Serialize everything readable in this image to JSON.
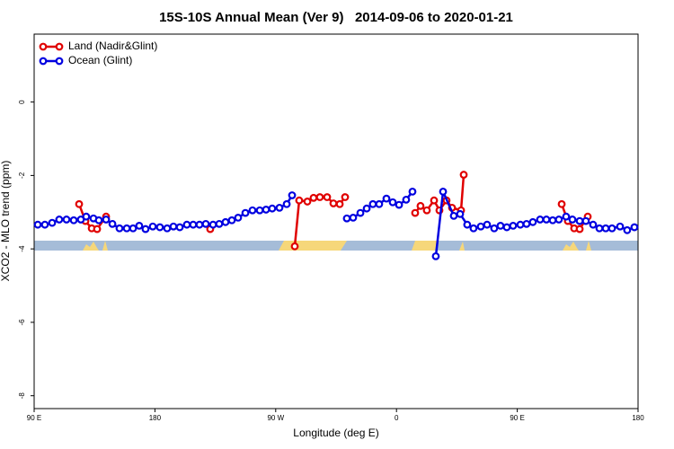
{
  "chart_data": {
    "type": "line",
    "title": "15S-10S Annual Mean (Ver 9)   2014-09-06 to 2020-01-21",
    "x_label": "Longitude (deg E)",
    "y_label": "XCO2 - MLO trend (ppm)",
    "xlim": [
      90,
      540
    ],
    "xticks": [
      {
        "value": 90,
        "label": "90 E"
      },
      {
        "value": 180,
        "label": "180"
      },
      {
        "value": 270,
        "label": "90 W"
      },
      {
        "value": 360,
        "label": "0"
      },
      {
        "value": 450,
        "label": "90 E"
      },
      {
        "value": 540,
        "label": "180"
      }
    ],
    "ylim": [
      -8.35,
      1.85
    ],
    "yticks": [
      0,
      -2,
      -4,
      -6,
      -8
    ],
    "legend": "top-left",
    "series": [
      {
        "name": "Land (Nadir&Glint)",
        "color": "#e00000",
        "x": [
          123.5,
          128.2,
          132.9,
          136.9,
          143.6,
          null,
          221.2,
          null,
          284.2,
          287.5,
          293.6,
          298.2,
          302.9,
          308.3,
          313.0,
          317.7,
          321.7,
          null,
          373.9,
          377.9,
          382.6,
          388.0,
          392.0,
          397.3,
          401.4,
          408.1,
          410.1,
          null,
          483.1,
          487.7,
          492.4,
          496.5,
          502.5
        ],
        "values": [
          -2.78,
          -3.24,
          -3.44,
          -3.46,
          -3.12,
          null,
          -3.46,
          null,
          -3.93,
          -2.68,
          -2.71,
          -2.61,
          -2.59,
          -2.59,
          -2.76,
          -2.78,
          -2.59,
          null,
          -3.02,
          -2.83,
          -2.95,
          -2.68,
          -2.95,
          -2.68,
          -2.88,
          -2.95,
          -1.98,
          null,
          -2.78,
          -3.24,
          -3.44,
          -3.46,
          -3.12
        ]
      },
      {
        "name": "Ocean (Glint)",
        "color": "#0000e0",
        "x": [
          92.7,
          98.0,
          103.4,
          108.7,
          114.1,
          119.5,
          124.8,
          128.8,
          134.2,
          138.2,
          143.6,
          148.3,
          153.6,
          159.0,
          163.7,
          168.3,
          173.0,
          178.4,
          183.7,
          189.1,
          193.8,
          198.5,
          203.8,
          208.5,
          213.2,
          217.9,
          223.3,
          227.9,
          232.6,
          237.3,
          242.0,
          247.4,
          252.7,
          258.1,
          262.8,
          267.4,
          272.8,
          278.2,
          282.2,
          null,
          323.0,
          327.7,
          333.1,
          337.8,
          342.4,
          347.1,
          352.5,
          357.2,
          361.9,
          367.2,
          371.9,
          null,
          389.3,
          394.7,
          402.7,
          407.4,
          412.7,
          417.4,
          422.8,
          427.5,
          432.8,
          437.5,
          442.2,
          446.9,
          452.3,
          456.9,
          461.6,
          467.0,
          471.7,
          476.4,
          481.0,
          486.4,
          491.1,
          496.5,
          501.1,
          506.5,
          511.2,
          515.9,
          520.6,
          526.6,
          531.9,
          537.3
        ],
        "values": [
          -3.34,
          -3.34,
          -3.29,
          -3.2,
          -3.2,
          -3.22,
          -3.2,
          -3.12,
          -3.17,
          -3.22,
          -3.2,
          -3.32,
          -3.44,
          -3.44,
          -3.44,
          -3.37,
          -3.46,
          -3.39,
          -3.41,
          -3.44,
          -3.39,
          -3.41,
          -3.34,
          -3.34,
          -3.34,
          -3.32,
          -3.34,
          -3.32,
          -3.27,
          -3.22,
          -3.15,
          -3.02,
          -2.95,
          -2.95,
          -2.93,
          -2.9,
          -2.88,
          -2.78,
          -2.54,
          null,
          -3.17,
          -3.15,
          -3.02,
          -2.9,
          -2.78,
          -2.78,
          -2.63,
          -2.73,
          -2.8,
          -2.66,
          -2.44,
          null,
          -4.2,
          -2.44,
          -3.1,
          -3.05,
          -3.34,
          -3.44,
          -3.39,
          -3.34,
          -3.44,
          -3.37,
          -3.41,
          -3.37,
          -3.34,
          -3.32,
          -3.27,
          -3.2,
          -3.2,
          -3.22,
          -3.2,
          -3.12,
          -3.2,
          -3.24,
          -3.24,
          -3.34,
          -3.44,
          -3.44,
          -3.44,
          -3.39,
          -3.49,
          -3.41
        ]
      }
    ]
  }
}
